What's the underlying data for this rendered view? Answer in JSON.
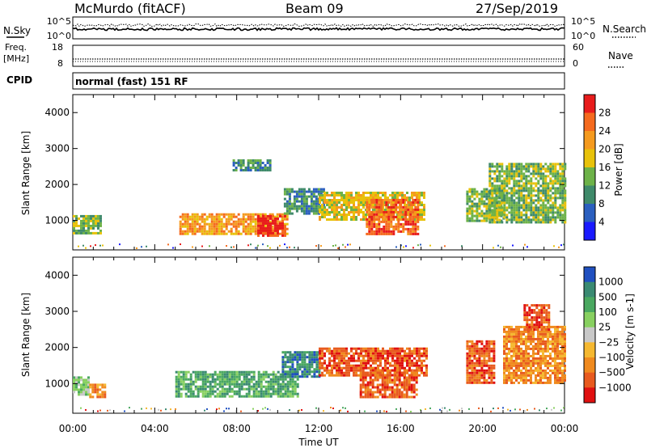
{
  "header": {
    "title": "McMurdo (fitACF)",
    "beam": "Beam 09",
    "date": "27/Sep/2019"
  },
  "status_panels": {
    "nsky_label": "N.Sky",
    "nsky_ticks": [
      "10^5",
      "10^0"
    ],
    "nsearch_label": "N.Search",
    "nsearch_ticks": [
      "10^5",
      "10^0"
    ],
    "freq_label_1": "Freq.",
    "freq_label_2": "[MHz]",
    "freq_ticks": [
      "18",
      "8"
    ],
    "nave_label": "Nave",
    "nave_ticks": [
      "60",
      "0"
    ],
    "cpid_label": "CPID",
    "cpid_text": "normal (fast) 151 RF"
  },
  "chart_data": [
    {
      "type": "heatmap",
      "name": "power",
      "ylabel": "Slant Range [km]",
      "ylim": [
        180,
        4500
      ],
      "yticks": [
        "1000",
        "2000",
        "3000",
        "4000"
      ],
      "xlim_hours": [
        0,
        24
      ],
      "colorbar_label": "Power [dB]",
      "colorbar_ticks": [
        "4",
        "8",
        "12",
        "16",
        "20",
        "24",
        "28"
      ],
      "colorbar_range": [
        0,
        32
      ],
      "colors": [
        "#1a1aff",
        "#2b5fbf",
        "#3f8a6a",
        "#6db248",
        "#e8c20a",
        "#f59a1e",
        "#f56a1e",
        "#e81c1c"
      ],
      "echo_regions": [
        {
          "t0": 0.0,
          "t1": 1.4,
          "r0": 650,
          "r1": 1150,
          "value": 14
        },
        {
          "t0": 5.2,
          "t1": 10.5,
          "r0": 650,
          "r1": 1200,
          "value": 22
        },
        {
          "t0": 9.0,
          "t1": 10.4,
          "r0": 580,
          "r1": 1150,
          "value": 28
        },
        {
          "t0": 10.3,
          "t1": 12.2,
          "r0": 1200,
          "r1": 1900,
          "value": 10
        },
        {
          "t0": 12.0,
          "t1": 17.2,
          "r0": 1050,
          "r1": 1800,
          "value": 18
        },
        {
          "t0": 14.3,
          "t1": 16.8,
          "r0": 600,
          "r1": 1600,
          "value": 27
        },
        {
          "t0": 19.2,
          "t1": 21.0,
          "r0": 1000,
          "r1": 1900,
          "value": 14
        },
        {
          "t0": 20.3,
          "t1": 24.0,
          "r0": 950,
          "r1": 2600,
          "value": 13
        },
        {
          "t0": 7.8,
          "t1": 9.6,
          "r0": 2400,
          "r1": 2700,
          "value": 10
        }
      ]
    },
    {
      "type": "heatmap",
      "name": "velocity",
      "ylabel": "Slant Range [km]",
      "ylim": [
        180,
        4500
      ],
      "yticks": [
        "1000",
        "2000",
        "3000",
        "4000"
      ],
      "xlim_hours": [
        0,
        24
      ],
      "xticks": [
        "00:00",
        "04:00",
        "08:00",
        "12:00",
        "16:00",
        "20:00",
        "00:00"
      ],
      "xlabel": "Time UT",
      "colorbar_label": "Velocity [m s-1]",
      "colorbar_ticks": [
        "1000",
        "500",
        "100",
        "25",
        "−25",
        "−100",
        "−500",
        "−1000"
      ],
      "colors": [
        "#2050c0",
        "#3a8a72",
        "#4aa860",
        "#88d060",
        "#c8c8c8",
        "#f5b830",
        "#f08a1e",
        "#e85a1e",
        "#e01010"
      ],
      "echo_regions": [
        {
          "t0": 0.0,
          "t1": 0.8,
          "r0": 700,
          "r1": 1200,
          "value": "25"
        },
        {
          "t0": 0.8,
          "t1": 1.6,
          "r0": 650,
          "r1": 1000,
          "value": "−100"
        },
        {
          "t0": 5.0,
          "t1": 11.0,
          "r0": 650,
          "r1": 1350,
          "value": "100"
        },
        {
          "t0": 10.2,
          "t1": 12.0,
          "r0": 1200,
          "r1": 1900,
          "value": "500"
        },
        {
          "t0": 12.0,
          "t1": 17.3,
          "r0": 1200,
          "r1": 2000,
          "value": "−500"
        },
        {
          "t0": 14.0,
          "t1": 16.8,
          "r0": 650,
          "r1": 1400,
          "value": "−500"
        },
        {
          "t0": 19.2,
          "t1": 20.6,
          "r0": 1000,
          "r1": 2200,
          "value": "−500"
        },
        {
          "t0": 21.0,
          "t1": 24.0,
          "r0": 1000,
          "r1": 2600,
          "value": "−100"
        },
        {
          "t0": 22.0,
          "t1": 23.2,
          "r0": 2500,
          "r1": 3200,
          "value": "−500"
        }
      ]
    }
  ]
}
